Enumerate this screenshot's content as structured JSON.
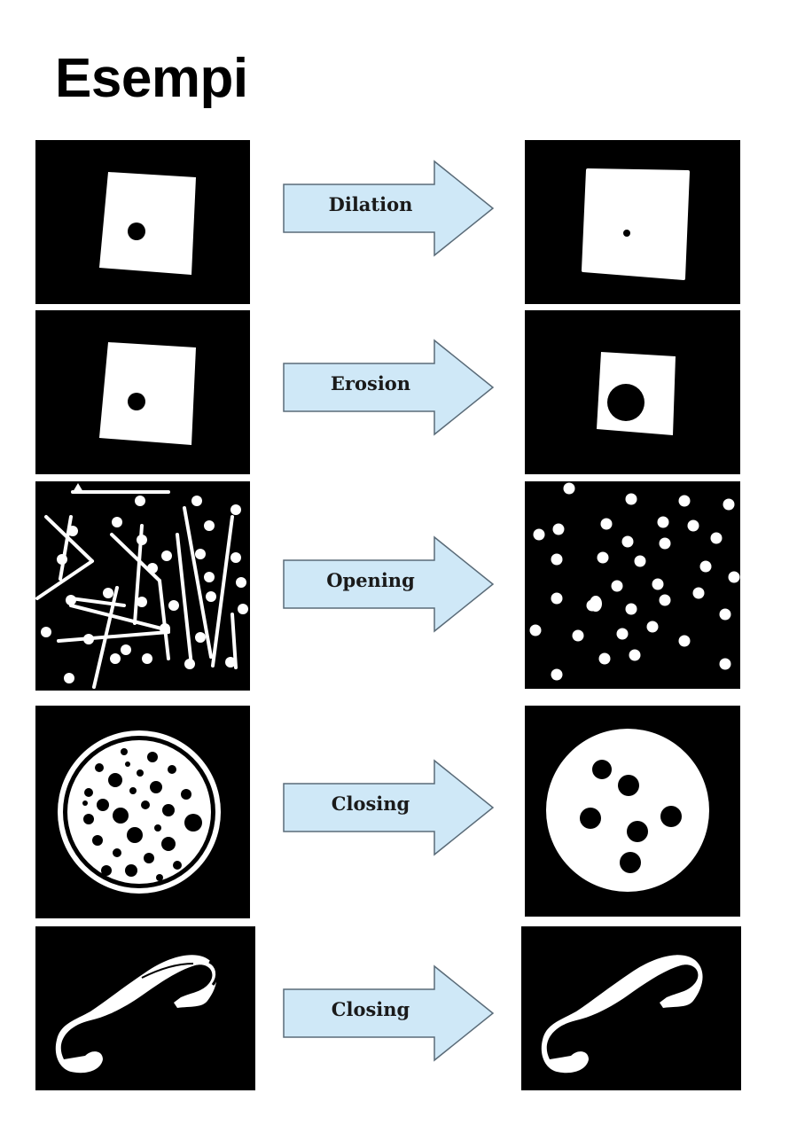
{
  "title": "Esempi",
  "colors": {
    "panel_background": "#000000",
    "shape_fill": "#ffffff",
    "arrow_fill": "#cfe8f7",
    "arrow_stroke": "#5a6b78"
  },
  "rows": [
    {
      "operation": "Dilation",
      "before": "square-with-dot",
      "after": "square-with-smaller-dot"
    },
    {
      "operation": "Erosion",
      "before": "square-with-dot",
      "after": "smaller-square-with-larger-hole"
    },
    {
      "operation": "Opening",
      "before": "lines-and-dots",
      "after": "dots-only"
    },
    {
      "operation": "Closing",
      "before": "circle-with-many-holes",
      "after": "filled-circle-with-few-holes"
    },
    {
      "operation": "Closing",
      "before": "telephone-receiver-with-gaps",
      "after": "telephone-receiver-filled"
    }
  ]
}
